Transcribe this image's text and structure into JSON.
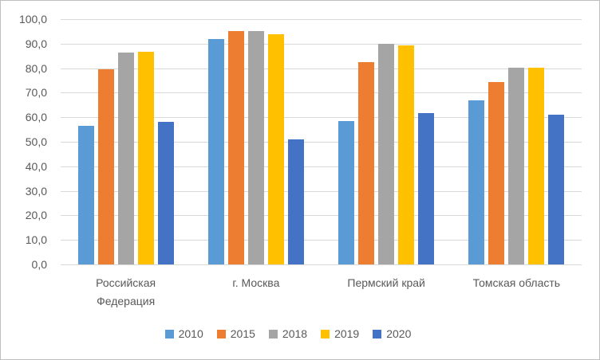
{
  "chart_data": {
    "type": "bar",
    "title": "",
    "categories": [
      "Российская Федерация",
      "г. Москва",
      "Пермский край",
      "Томская область"
    ],
    "series": [
      {
        "name": "2010",
        "color": "#5B9BD5",
        "values": [
          56.6,
          91.8,
          58.5,
          66.8
        ]
      },
      {
        "name": "2015",
        "color": "#ED7D31",
        "values": [
          79.7,
          95.0,
          82.4,
          74.2
        ]
      },
      {
        "name": "2018",
        "color": "#A5A5A5",
        "values": [
          86.4,
          95.0,
          90.0,
          80.2
        ]
      },
      {
        "name": "2019",
        "color": "#FFC000",
        "values": [
          86.7,
          93.8,
          89.4,
          80.2
        ]
      },
      {
        "name": "2020",
        "color": "#4472C4",
        "values": [
          58.0,
          51.0,
          61.8,
          61.0
        ]
      }
    ],
    "xlabel": "",
    "ylabel": "",
    "ylim": [
      0,
      100
    ],
    "ytick_step": 10,
    "ytick_labels": [
      "0,0",
      "10,0",
      "20,0",
      "30,0",
      "40,0",
      "50,0",
      "60,0",
      "70,0",
      "80,0",
      "90,0",
      "100,0"
    ],
    "decimal_separator": ",",
    "grid": true,
    "legend_position": "bottom",
    "colors": {
      "axis_text": "#595959",
      "gridline": "#D9D9D9",
      "frame_border": "#BFBFBF",
      "background": "#FFFFFF"
    }
  }
}
